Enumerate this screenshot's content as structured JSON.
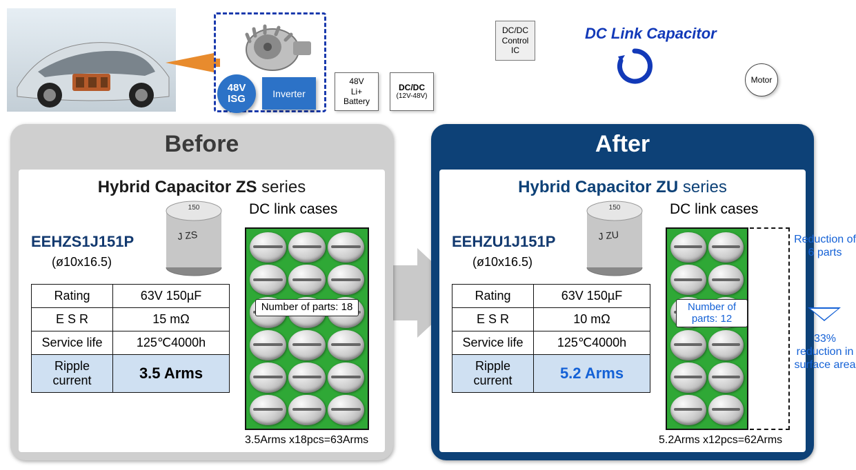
{
  "top": {
    "isg_circle": {
      "line1": "48V",
      "line2": "ISG"
    },
    "inverter": "Inverter",
    "battery": {
      "l1": "48V",
      "l2": "Li+",
      "l3": "Battery"
    },
    "dcdc": {
      "l1": "DC/DC",
      "l2": "(12V-48V)"
    },
    "dcdc_ic": "DC/DC\nControl\nIC",
    "dc_link_title": "DC Link Capacitor",
    "motor": "Motor",
    "colors": {
      "brand_blue": "#2c72c7",
      "dash_blue": "#1a3aad",
      "link_blue": "#1239b8"
    }
  },
  "arrow_color": "#bfbfbf",
  "before": {
    "panel_title": "Before",
    "series_html": "Hybrid Capacitor ZS",
    "series_suffix": " series",
    "part": "EEHZS1J151P",
    "size": "(ø10x16.5)",
    "dc_cases": "DC link cases",
    "rows": [
      [
        "Rating",
        "63V 150µF"
      ],
      [
        "E S R",
        "15 mΩ"
      ],
      [
        "Service life",
        "125℃4000h"
      ]
    ],
    "ripple_label": "Ripple\ncurrent",
    "ripple_value": "3.5 Arms",
    "parts_count": 18,
    "parts_label": "Number of parts: 18",
    "calc": "3.5Arms x18pcs=63Arms",
    "pcb_color": "#2fa836"
  },
  "after": {
    "panel_title": "After",
    "series_html": "Hybrid Capacitor ZU",
    "series_suffix": " series",
    "part": "EEHZU1J151P",
    "size": "(ø10x16.5)",
    "dc_cases": "DC link cases",
    "rows": [
      [
        "Rating",
        "63V 150µF"
      ],
      [
        "E S R",
        "10 mΩ"
      ],
      [
        "Service life",
        "125℃4000h"
      ]
    ],
    "ripple_label": "Ripple\ncurrent",
    "ripple_value": "5.2 Arms",
    "parts_count": 12,
    "parts_label": "Number of parts: 12",
    "calc": "5.2Arms x12pcs=62Arms",
    "reduction1": "Reduction of 6 parts",
    "reduction2": "33% reduction in surface area",
    "pcb_color": "#2fa836"
  }
}
